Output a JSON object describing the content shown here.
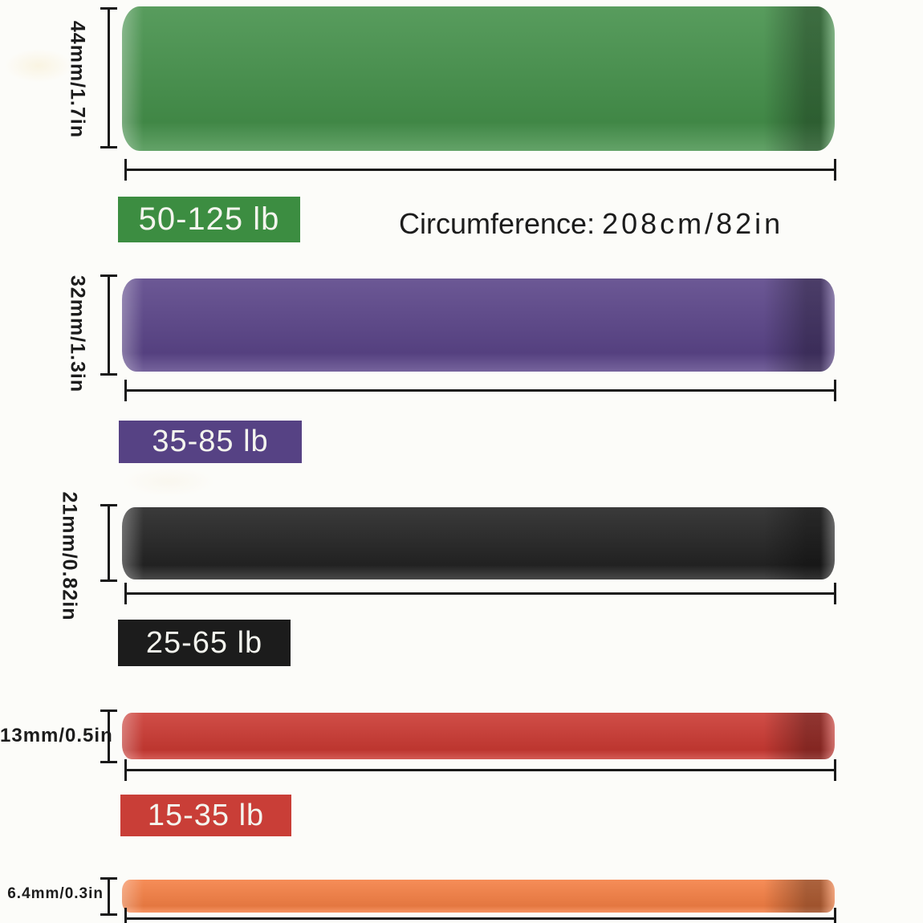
{
  "circumference": {
    "label": "Circumference:",
    "value": "208cm/82in"
  },
  "bands": [
    {
      "color_name": "green",
      "width": "44mm/1.7in",
      "resistance": "50-125 lb",
      "color": "#45914b",
      "badge_color": "#3c8d41"
    },
    {
      "color_name": "purple",
      "width": "32mm/1.3in",
      "resistance": "35-85 lb",
      "color": "#5b4589",
      "badge_color": "#564284"
    },
    {
      "color_name": "black",
      "width": "21mm/0.82in",
      "resistance": "25-65 lb",
      "color": "#242424",
      "badge_color": "#1c1c1c"
    },
    {
      "color_name": "red",
      "width": "13mm/0.5in",
      "resistance": "15-35 lb",
      "color": "#cb3a33",
      "badge_color": "#c93e37"
    },
    {
      "color_name": "orange",
      "width": "6.4mm/0.3in",
      "color": "#f58045"
    }
  ],
  "colors": {
    "bg": "#fcfcf9",
    "ink": "#1c1c1c",
    "line": "#1a1a1a",
    "badge_text": "#f4f5ee"
  }
}
